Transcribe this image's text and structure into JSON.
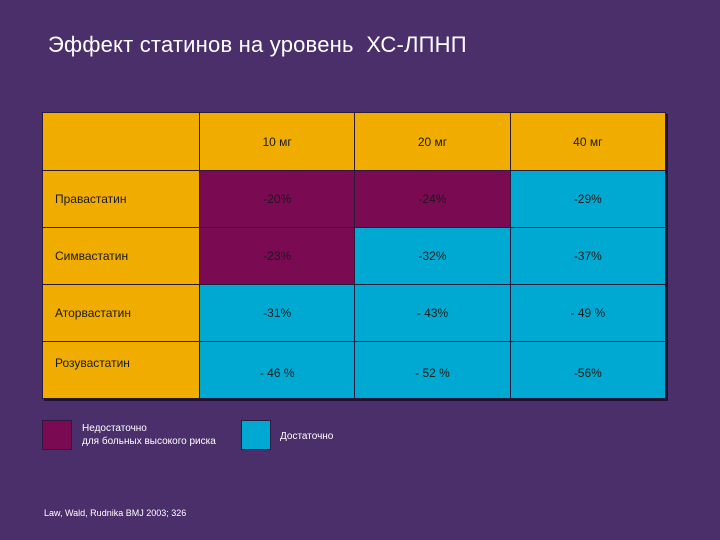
{
  "title": "Эффект статинов на уровень  ХС-ЛПНП",
  "table": {
    "headers": [
      "10 мг",
      "20 мг",
      "40 мг"
    ],
    "rows": [
      {
        "label": "Правастатин",
        "values": [
          "-20%",
          "-24%",
          "-29%"
        ],
        "status": [
          "insufficient",
          "insufficient",
          "sufficient"
        ]
      },
      {
        "label": "Симвастатин",
        "values": [
          "-23%",
          "-32%",
          "-37%"
        ],
        "status": [
          "insufficient",
          "sufficient",
          "sufficient"
        ]
      },
      {
        "label": "Аторвастатин",
        "values": [
          "-31%",
          "- 43%",
          "- 49 %"
        ],
        "status": [
          "sufficient",
          "sufficient",
          "sufficient"
        ]
      },
      {
        "label": "Розувастатин",
        "values": [
          "- 46 %",
          "- 52 %",
          "-56%"
        ],
        "status": [
          "sufficient",
          "sufficient",
          "sufficient"
        ]
      }
    ]
  },
  "legend": {
    "insufficient_line1": "Недостаточно",
    "insufficient_line2": "для больных высокого риска",
    "sufficient": "Достаточно"
  },
  "colors": {
    "background": "#4b2f6b",
    "header": "#f0ad00",
    "insufficient": "#7a0a52",
    "sufficient": "#00a9d2"
  },
  "source": "Law, Wald, Rudnika BMJ 2003; 326"
}
